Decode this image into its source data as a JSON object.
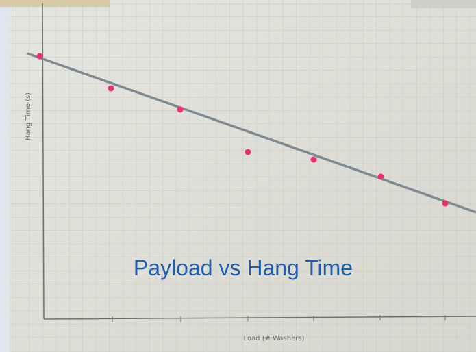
{
  "title": "Payload vs Hang Time",
  "y_axis_label": "Hang Time (s)",
  "x_axis_label": "Load (# Washers)"
}
